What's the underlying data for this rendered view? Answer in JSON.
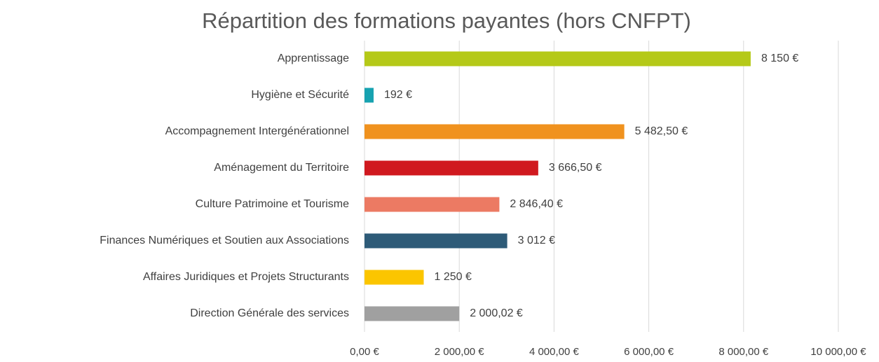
{
  "chart_data": {
    "type": "hbar",
    "title": "Répartition des formations payantes (hors CNFPT)",
    "categories": [
      "Apprentissage",
      "Hygiène et Sécurité",
      "Accompagnement Intergénérationnel",
      "Aménagement du Territoire",
      "Culture Patrimoine et Tourisme",
      "Finances Numériques et Soutien aux Associations",
      "Affaires Juridiques et Projets Structurants",
      "Direction Générale des services"
    ],
    "values": [
      8150,
      192,
      5482.5,
      3666.5,
      2846.4,
      3012,
      1250,
      2000.02
    ],
    "value_labels": [
      "8 150 €",
      "192 €",
      "5 482,50 €",
      "3 666,50 €",
      "2 846,40 €",
      "3 012 €",
      "1 250 €",
      "2 000,02 €"
    ],
    "colors": [
      "#b5c918",
      "#17a2b0",
      "#f0921e",
      "#d0191f",
      "#ec7a63",
      "#2e5b78",
      "#fbc500",
      "#a0a0a0"
    ],
    "xlim": [
      0,
      10000
    ],
    "xticks": [
      {
        "value": 0,
        "label": "0,00 €"
      },
      {
        "value": 2000,
        "label": "2 000,00 €"
      },
      {
        "value": 4000,
        "label": "4 000,00 €"
      },
      {
        "value": 6000,
        "label": "6 000,00 €"
      },
      {
        "value": 8000,
        "label": "8 000,00 €"
      },
      {
        "value": 10000,
        "label": "10 000,00 €"
      }
    ],
    "grid": true
  }
}
